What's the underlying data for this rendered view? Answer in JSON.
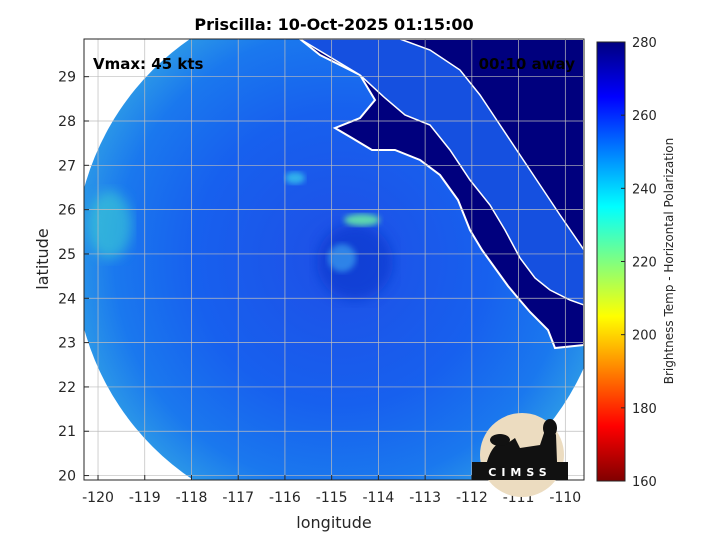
{
  "chart_data": {
    "type": "heatmap",
    "title": "Priscilla: 10-Oct-2025 01:15:00",
    "xlabel": "longitude",
    "ylabel": "latitude",
    "xlim": [
      -120.3,
      -109.6
    ],
    "ylim": [
      19.9,
      29.85
    ],
    "x_ticks": [
      -120,
      -119,
      -118,
      -117,
      -116,
      -115,
      -114,
      -113,
      -112,
      -111,
      -110
    ],
    "y_ticks": [
      20,
      21,
      22,
      23,
      24,
      25,
      26,
      27,
      28,
      29
    ],
    "grid": true,
    "storm_center": {
      "lon": -114.8,
      "lat": 24.9
    },
    "swath": {
      "center_lon": -114.8,
      "center_lat": 24.9,
      "radius_deg": 5.7
    },
    "annotations": {
      "intensity": "Vmax: 45 kts",
      "time_offset": "00:10 away"
    },
    "colorbar": {
      "label": "Brightness Temp - Horizontal Polarization",
      "range": [
        160,
        280
      ],
      "ticks": [
        160,
        180,
        200,
        220,
        240,
        260,
        280
      ],
      "colormap": [
        "#800000",
        "#ff0000",
        "#ff8000",
        "#ffff00",
        "#80ff80",
        "#00ffff",
        "#0080ff",
        "#0000ff",
        "#000080"
      ]
    },
    "logo_text": "CIMSS"
  }
}
